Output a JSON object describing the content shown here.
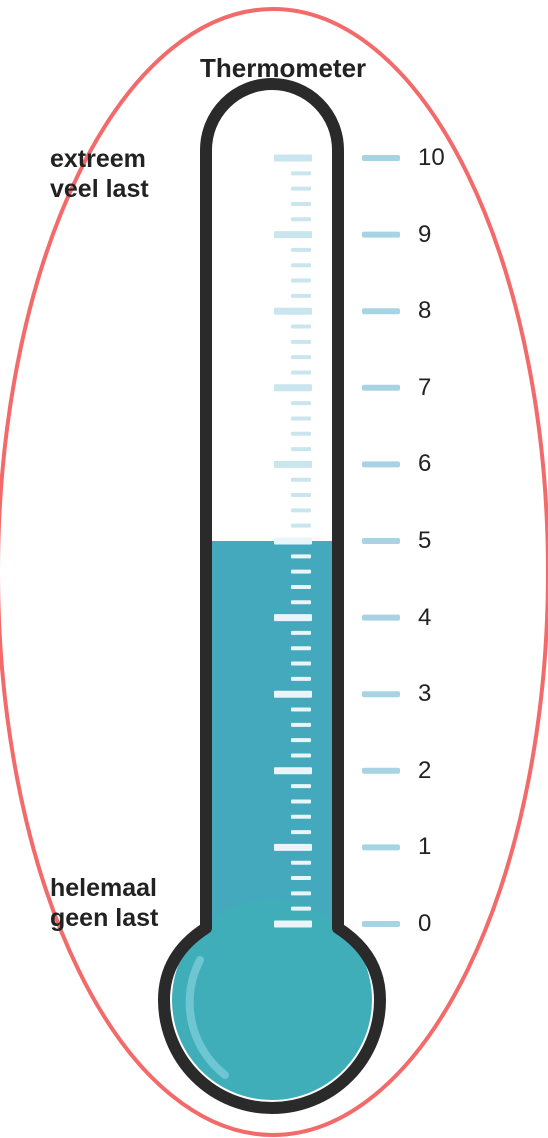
{
  "title": "Thermometer",
  "top_label": {
    "line1": "extreem",
    "line2": "veel last"
  },
  "bottom_label": {
    "line1": "helemaal",
    "line2": "geen last"
  },
  "scale": {
    "min": 0,
    "max": 10,
    "labels": [
      "0",
      "1",
      "2",
      "3",
      "4",
      "5",
      "6",
      "7",
      "8",
      "9",
      "10"
    ]
  },
  "level": 5,
  "colors": {
    "fill": "#45a9bd",
    "bulb": "#40aeb9",
    "outline": "#2a2a2a",
    "tick_light": "#c9e6ee",
    "tick_on_fill": "#e8f6fa",
    "scale_tick": "#a7d3e3",
    "ellipse": "#f26a6a"
  }
}
